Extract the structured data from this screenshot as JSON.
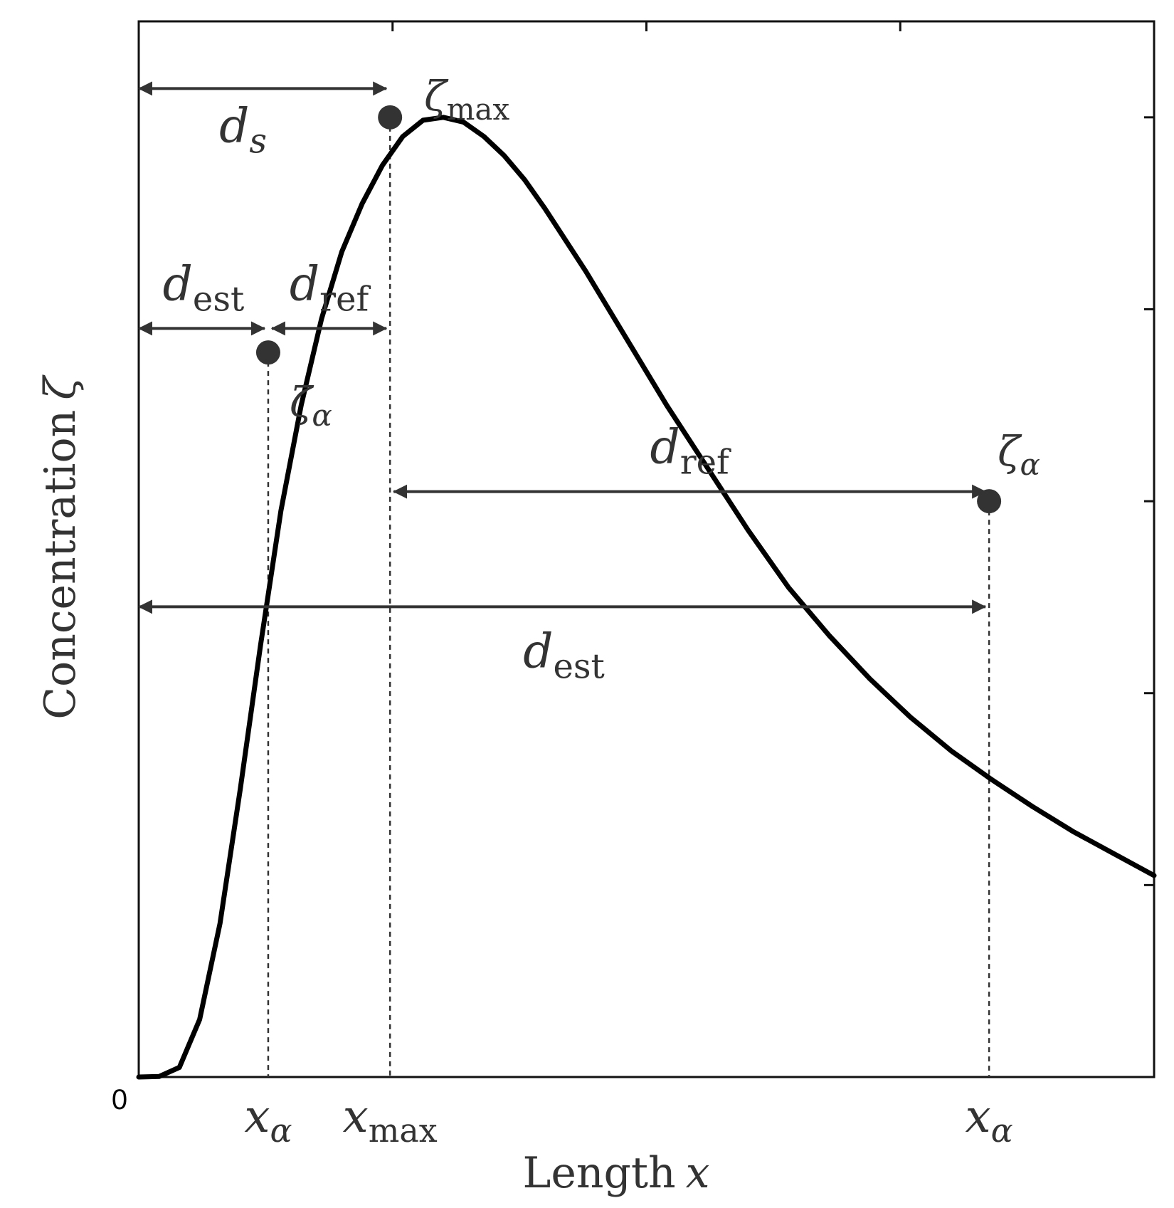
{
  "chart_data": {
    "type": "line",
    "xlabel": {
      "main": "Length",
      "var": "x"
    },
    "ylabel": {
      "main": "Concentration",
      "var": "ζ"
    },
    "origin_label": "0",
    "grid": false,
    "curve": {
      "x": [
        0,
        0.02,
        0.04,
        0.06,
        0.08,
        0.1,
        0.12,
        0.14,
        0.16,
        0.18,
        0.2,
        0.22,
        0.24,
        0.26,
        0.28,
        0.3,
        0.32,
        0.34,
        0.36,
        0.38,
        0.4,
        0.44,
        0.48,
        0.52,
        0.56,
        0.6,
        0.64,
        0.68,
        0.72,
        0.76,
        0.8,
        0.84,
        0.88,
        0.92,
        0.96,
        1.0
      ],
      "y": [
        0,
        0.0005,
        0.01,
        0.06,
        0.16,
        0.3,
        0.45,
        0.59,
        0.7,
        0.79,
        0.86,
        0.91,
        0.95,
        0.98,
        0.997,
        1.0,
        0.995,
        0.98,
        0.96,
        0.935,
        0.905,
        0.84,
        0.77,
        0.7,
        0.635,
        0.57,
        0.51,
        0.46,
        0.415,
        0.375,
        0.34,
        0.31,
        0.282,
        0.256,
        0.233,
        0.21
      ]
    },
    "points": [
      {
        "x": 0.1275,
        "y": 0.755,
        "label_main": "ζ",
        "label_sub": "α"
      },
      {
        "x": 0.2475,
        "y": 1.0,
        "label_main": "ζ",
        "label_sub": "max"
      },
      {
        "x": 0.8375,
        "y": 0.6,
        "label_main": "ζ",
        "label_sub": "α"
      }
    ],
    "x_markers": [
      {
        "x": 0.1275,
        "main": "x",
        "sub": "α"
      },
      {
        "x": 0.2475,
        "main": "x",
        "sub": "max"
      },
      {
        "x": 0.8375,
        "main": "x",
        "sub": "α"
      }
    ],
    "dimensions": [
      {
        "x1": 0.0,
        "x2": 0.2475,
        "y": 1.03,
        "main": "d",
        "sub": "s"
      },
      {
        "x1": 0.0,
        "x2": 0.1275,
        "y": 0.78,
        "main": "d",
        "sub": "est"
      },
      {
        "x1": 0.1275,
        "x2": 0.2475,
        "y": 0.78,
        "main": "d",
        "sub": "ref"
      },
      {
        "x1": 0.2475,
        "x2": 0.8375,
        "y": 0.61,
        "main": "d",
        "sub": "ref"
      },
      {
        "x1": 0.0,
        "x2": 0.8375,
        "y": 0.49,
        "main": "d",
        "sub": "est"
      }
    ],
    "xlim": [
      0,
      1
    ],
    "ylim": [
      0,
      1.1
    ]
  }
}
